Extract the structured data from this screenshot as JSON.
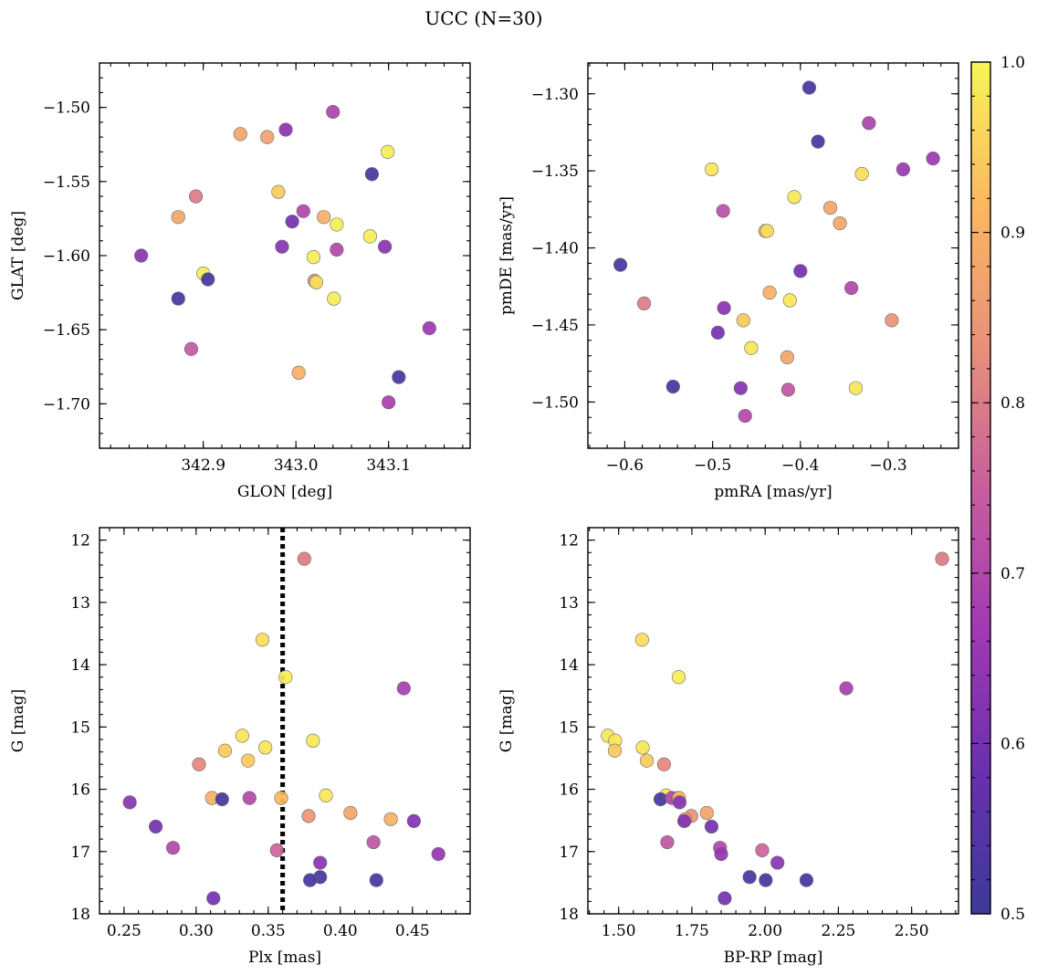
{
  "figure": {
    "title": "UCC (N=30)"
  },
  "colorbar": {
    "range": [
      0.5,
      1.0
    ],
    "ticks": [
      0.5,
      0.6,
      0.7,
      0.8,
      0.9,
      1.0
    ],
    "tick_labels": [
      "0.5",
      "0.6",
      "0.7",
      "0.8",
      "0.9",
      "1.0"
    ],
    "colormap": "plasma",
    "stops": [
      "#3b3a99",
      "#6a2fb0",
      "#a139b3",
      "#c85e9e",
      "#e8907a",
      "#fbb860",
      "#f8f456"
    ]
  },
  "chart_data": [
    {
      "type": "scatter",
      "xlabel": "GLON [deg]",
      "ylabel": "GLAT [deg]",
      "xlim": [
        342.788,
        343.188
      ],
      "ylim": [
        -1.73,
        -1.47
      ],
      "xticks": [
        342.9,
        343.0,
        343.1
      ],
      "xtick_labels": [
        "342.9",
        "343.0",
        "343.1"
      ],
      "yticks": [
        -1.5,
        -1.55,
        -1.6,
        -1.65,
        -1.7
      ],
      "ytick_labels": [
        "−1.50",
        "−1.55",
        "−1.60",
        "−1.65",
        "−1.70"
      ],
      "invert_y": false,
      "points": [
        {
          "x": 342.833,
          "y": -1.6,
          "c": 0.63
        },
        {
          "x": 342.873,
          "y": -1.574,
          "c": 0.88
        },
        {
          "x": 342.873,
          "y": -1.629,
          "c": 0.52
        },
        {
          "x": 342.892,
          "y": -1.56,
          "c": 0.8
        },
        {
          "x": 342.887,
          "y": -1.663,
          "c": 0.74
        },
        {
          "x": 342.9,
          "y": -1.612,
          "c": 0.99
        },
        {
          "x": 342.905,
          "y": -1.616,
          "c": 0.52
        },
        {
          "x": 342.94,
          "y": -1.518,
          "c": 0.88
        },
        {
          "x": 342.969,
          "y": -1.52,
          "c": 0.87
        },
        {
          "x": 342.981,
          "y": -1.557,
          "c": 0.94
        },
        {
          "x": 342.985,
          "y": -1.594,
          "c": 0.63
        },
        {
          "x": 342.989,
          "y": -1.515,
          "c": 0.63
        },
        {
          "x": 342.996,
          "y": -1.577,
          "c": 0.6
        },
        {
          "x": 343.003,
          "y": -1.679,
          "c": 0.9
        },
        {
          "x": 343.008,
          "y": -1.57,
          "c": 0.7
        },
        {
          "x": 343.019,
          "y": -1.601,
          "c": 0.99
        },
        {
          "x": 343.02,
          "y": -1.617,
          "c": 0.84
        },
        {
          "x": 343.022,
          "y": -1.618,
          "c": 0.97
        },
        {
          "x": 343.03,
          "y": -1.574,
          "c": 0.9
        },
        {
          "x": 343.04,
          "y": -1.503,
          "c": 0.69
        },
        {
          "x": 343.041,
          "y": -1.629,
          "c": 0.99
        },
        {
          "x": 343.044,
          "y": -1.579,
          "c": 0.99
        },
        {
          "x": 343.044,
          "y": -1.596,
          "c": 0.7
        },
        {
          "x": 343.08,
          "y": -1.587,
          "c": 0.99
        },
        {
          "x": 343.082,
          "y": -1.545,
          "c": 0.52
        },
        {
          "x": 343.096,
          "y": -1.594,
          "c": 0.63
        },
        {
          "x": 343.099,
          "y": -1.53,
          "c": 0.99
        },
        {
          "x": 343.1,
          "y": -1.699,
          "c": 0.68
        },
        {
          "x": 343.111,
          "y": -1.682,
          "c": 0.52
        },
        {
          "x": 343.144,
          "y": -1.649,
          "c": 0.66
        }
      ]
    },
    {
      "type": "scatter",
      "xlabel": "pmRA [mas/yr]",
      "ylabel": "pmDE [mas/yr]",
      "xlim": [
        -0.642,
        -0.22
      ],
      "ylim": [
        -1.53,
        -1.28
      ],
      "xticks": [
        -0.6,
        -0.5,
        -0.4,
        -0.3
      ],
      "xtick_labels": [
        "−0.6",
        "−0.5",
        "−0.4",
        "−0.3"
      ],
      "yticks": [
        -1.3,
        -1.35,
        -1.4,
        -1.45,
        -1.5
      ],
      "ytick_labels": [
        "−1.30",
        "−1.35",
        "−1.40",
        "−1.45",
        "−1.50"
      ],
      "invert_y": false,
      "points": [
        {
          "x": -0.39,
          "y": -1.296,
          "c": 0.52
        },
        {
          "x": -0.38,
          "y": -1.331,
          "c": 0.52
        },
        {
          "x": -0.322,
          "y": -1.319,
          "c": 0.69
        },
        {
          "x": -0.249,
          "y": -1.342,
          "c": 0.66
        },
        {
          "x": -0.283,
          "y": -1.349,
          "c": 0.66
        },
        {
          "x": -0.33,
          "y": -1.352,
          "c": 0.97
        },
        {
          "x": -0.501,
          "y": -1.349,
          "c": 0.98
        },
        {
          "x": -0.407,
          "y": -1.367,
          "c": 0.98
        },
        {
          "x": -0.366,
          "y": -1.374,
          "c": 0.88
        },
        {
          "x": -0.488,
          "y": -1.376,
          "c": 0.72
        },
        {
          "x": -0.355,
          "y": -1.384,
          "c": 0.88
        },
        {
          "x": -0.44,
          "y": -1.389,
          "c": 0.9
        },
        {
          "x": -0.438,
          "y": -1.389,
          "c": 0.97
        },
        {
          "x": -0.605,
          "y": -1.411,
          "c": 0.52
        },
        {
          "x": -0.4,
          "y": -1.415,
          "c": 0.6
        },
        {
          "x": -0.342,
          "y": -1.426,
          "c": 0.7
        },
        {
          "x": -0.435,
          "y": -1.429,
          "c": 0.9
        },
        {
          "x": -0.578,
          "y": -1.436,
          "c": 0.8
        },
        {
          "x": -0.412,
          "y": -1.434,
          "c": 0.98
        },
        {
          "x": -0.487,
          "y": -1.439,
          "c": 0.63
        },
        {
          "x": -0.296,
          "y": -1.447,
          "c": 0.84
        },
        {
          "x": -0.465,
          "y": -1.447,
          "c": 0.94
        },
        {
          "x": -0.494,
          "y": -1.455,
          "c": 0.6
        },
        {
          "x": -0.456,
          "y": -1.465,
          "c": 0.98
        },
        {
          "x": -0.415,
          "y": -1.471,
          "c": 0.88
        },
        {
          "x": -0.545,
          "y": -1.49,
          "c": 0.52
        },
        {
          "x": -0.468,
          "y": -1.491,
          "c": 0.62
        },
        {
          "x": -0.414,
          "y": -1.492,
          "c": 0.73
        },
        {
          "x": -0.337,
          "y": -1.491,
          "c": 0.98
        },
        {
          "x": -0.463,
          "y": -1.509,
          "c": 0.7
        }
      ]
    },
    {
      "type": "scatter",
      "xlabel": "Plx [mas]",
      "ylabel": "G [mag]",
      "xlim": [
        0.233,
        0.49
      ],
      "ylim": [
        11.8,
        18.0
      ],
      "xticks": [
        0.25,
        0.3,
        0.35,
        0.4,
        0.45
      ],
      "xtick_labels": [
        "0.25",
        "0.30",
        "0.35",
        "0.40",
        "0.45"
      ],
      "yticks": [
        12,
        13,
        14,
        15,
        16,
        17,
        18
      ],
      "ytick_labels": [
        "12",
        "13",
        "14",
        "15",
        "16",
        "17",
        "18"
      ],
      "invert_y": true,
      "vline": {
        "x": 0.36,
        "style": "dotted"
      },
      "points": [
        {
          "x": 0.375,
          "y": 12.3,
          "c": 0.8
        },
        {
          "x": 0.346,
          "y": 13.6,
          "c": 0.97
        },
        {
          "x": 0.362,
          "y": 14.2,
          "c": 0.99
        },
        {
          "x": 0.444,
          "y": 14.38,
          "c": 0.68
        },
        {
          "x": 0.332,
          "y": 15.14,
          "c": 0.98
        },
        {
          "x": 0.381,
          "y": 15.22,
          "c": 0.98
        },
        {
          "x": 0.348,
          "y": 15.33,
          "c": 0.98
        },
        {
          "x": 0.32,
          "y": 15.38,
          "c": 0.94
        },
        {
          "x": 0.336,
          "y": 15.54,
          "c": 0.94
        },
        {
          "x": 0.302,
          "y": 15.6,
          "c": 0.82
        },
        {
          "x": 0.39,
          "y": 16.1,
          "c": 0.98
        },
        {
          "x": 0.311,
          "y": 16.14,
          "c": 0.9
        },
        {
          "x": 0.318,
          "y": 16.16,
          "c": 0.52
        },
        {
          "x": 0.337,
          "y": 16.14,
          "c": 0.7
        },
        {
          "x": 0.359,
          "y": 16.14,
          "c": 0.92
        },
        {
          "x": 0.254,
          "y": 16.21,
          "c": 0.63
        },
        {
          "x": 0.407,
          "y": 16.38,
          "c": 0.88
        },
        {
          "x": 0.378,
          "y": 16.43,
          "c": 0.84
        },
        {
          "x": 0.435,
          "y": 16.48,
          "c": 0.9
        },
        {
          "x": 0.451,
          "y": 16.51,
          "c": 0.62
        },
        {
          "x": 0.272,
          "y": 16.6,
          "c": 0.6
        },
        {
          "x": 0.423,
          "y": 16.85,
          "c": 0.73
        },
        {
          "x": 0.284,
          "y": 16.94,
          "c": 0.7
        },
        {
          "x": 0.356,
          "y": 16.98,
          "c": 0.76
        },
        {
          "x": 0.468,
          "y": 17.04,
          "c": 0.65
        },
        {
          "x": 0.386,
          "y": 17.18,
          "c": 0.63
        },
        {
          "x": 0.386,
          "y": 17.41,
          "c": 0.52
        },
        {
          "x": 0.379,
          "y": 17.46,
          "c": 0.52
        },
        {
          "x": 0.425,
          "y": 17.46,
          "c": 0.52
        },
        {
          "x": 0.312,
          "y": 17.75,
          "c": 0.6
        }
      ]
    },
    {
      "type": "scatter",
      "xlabel": "BP-RP [mag]",
      "ylabel": "G [mag]",
      "xlim": [
        1.395,
        2.66
      ],
      "ylim": [
        11.8,
        18.0
      ],
      "xticks": [
        1.5,
        1.75,
        2.0,
        2.25,
        2.5
      ],
      "xtick_labels": [
        "1.50",
        "1.75",
        "2.00",
        "2.25",
        "2.50"
      ],
      "yticks": [
        12,
        13,
        14,
        15,
        16,
        17,
        18
      ],
      "ytick_labels": [
        "12",
        "13",
        "14",
        "15",
        "16",
        "17",
        "18"
      ],
      "invert_y": true,
      "points": [
        {
          "x": 2.604,
          "y": 12.3,
          "c": 0.8
        },
        {
          "x": 1.58,
          "y": 13.6,
          "c": 0.97
        },
        {
          "x": 1.705,
          "y": 14.2,
          "c": 0.99
        },
        {
          "x": 2.277,
          "y": 14.38,
          "c": 0.68
        },
        {
          "x": 1.463,
          "y": 15.14,
          "c": 0.98
        },
        {
          "x": 1.488,
          "y": 15.22,
          "c": 0.98
        },
        {
          "x": 1.582,
          "y": 15.33,
          "c": 0.98
        },
        {
          "x": 1.487,
          "y": 15.38,
          "c": 0.94
        },
        {
          "x": 1.596,
          "y": 15.54,
          "c": 0.94
        },
        {
          "x": 1.655,
          "y": 15.6,
          "c": 0.82
        },
        {
          "x": 1.662,
          "y": 16.1,
          "c": 0.98
        },
        {
          "x": 1.702,
          "y": 16.14,
          "c": 0.9
        },
        {
          "x": 1.643,
          "y": 16.16,
          "c": 0.52
        },
        {
          "x": 1.682,
          "y": 16.14,
          "c": 0.7
        },
        {
          "x": 1.706,
          "y": 16.14,
          "c": 0.92
        },
        {
          "x": 1.708,
          "y": 16.21,
          "c": 0.63
        },
        {
          "x": 1.801,
          "y": 16.38,
          "c": 0.88
        },
        {
          "x": 1.748,
          "y": 16.43,
          "c": 0.84
        },
        {
          "x": 1.727,
          "y": 16.48,
          "c": 0.9
        },
        {
          "x": 1.724,
          "y": 16.51,
          "c": 0.62
        },
        {
          "x": 1.817,
          "y": 16.6,
          "c": 0.6
        },
        {
          "x": 1.666,
          "y": 16.85,
          "c": 0.73
        },
        {
          "x": 1.846,
          "y": 16.94,
          "c": 0.7
        },
        {
          "x": 1.99,
          "y": 16.98,
          "c": 0.76
        },
        {
          "x": 1.85,
          "y": 17.04,
          "c": 0.65
        },
        {
          "x": 2.042,
          "y": 17.18,
          "c": 0.63
        },
        {
          "x": 1.947,
          "y": 17.41,
          "c": 0.52
        },
        {
          "x": 2.002,
          "y": 17.46,
          "c": 0.52
        },
        {
          "x": 2.141,
          "y": 17.46,
          "c": 0.52
        },
        {
          "x": 1.862,
          "y": 17.75,
          "c": 0.6
        }
      ]
    }
  ]
}
